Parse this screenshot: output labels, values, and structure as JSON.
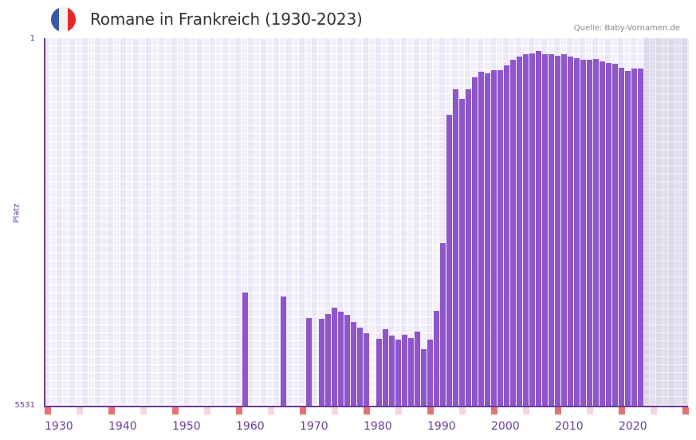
{
  "header": {
    "title": "Romane in Frankreich (1930-2023)",
    "source": "Quelle: Baby-Vornamen.de",
    "flag_colors": [
      "#3a56a5",
      "#f2f2f2",
      "#e8262e"
    ]
  },
  "colors": {
    "bar": "#8e56c9",
    "axis": "#6a3d9a",
    "decade_marker": "#e57373",
    "half_decade_marker": "#f6d5de"
  },
  "chart_data": {
    "type": "bar",
    "title": "Romane in Frankreich (1930-2023)",
    "xlabel": "",
    "ylabel": "Platz",
    "y_inverted": true,
    "ylim": [
      1,
      5531
    ],
    "yticks": [
      "1",
      "5531"
    ],
    "xlim": [
      1930,
      2030
    ],
    "xticks": [
      "1930",
      "1940",
      "1950",
      "1960",
      "1970",
      "1980",
      "1990",
      "2000",
      "2010",
      "2020"
    ],
    "grid": true,
    "legend": null,
    "shaded_future_from": 2024,
    "x": [
      1961,
      1967,
      1971,
      1973,
      1974,
      1975,
      1976,
      1977,
      1978,
      1979,
      1980,
      1982,
      1983,
      1984,
      1985,
      1986,
      1987,
      1988,
      1989,
      1990,
      1991,
      1992,
      1993,
      1994,
      1995,
      1996,
      1997,
      1998,
      1999,
      2000,
      2001,
      2002,
      2003,
      2004,
      2005,
      2006,
      2007,
      2008,
      2009,
      2010,
      2011,
      2012,
      2013,
      2014,
      2015,
      2016,
      2017,
      2018,
      2019,
      2020,
      2021,
      2022,
      2023
    ],
    "values": [
      3812,
      3872,
      4196,
      4208,
      4136,
      4040,
      4100,
      4148,
      4257,
      4341,
      4425,
      4509,
      4365,
      4461,
      4521,
      4449,
      4497,
      4401,
      4665,
      4521,
      4088,
      3066,
      1131,
      746,
      891,
      746,
      566,
      482,
      506,
      458,
      458,
      386,
      302,
      253,
      217,
      205,
      169,
      217,
      217,
      241,
      217,
      253,
      277,
      302,
      302,
      290,
      326,
      350,
      362,
      422,
      470,
      434,
      434
    ]
  }
}
